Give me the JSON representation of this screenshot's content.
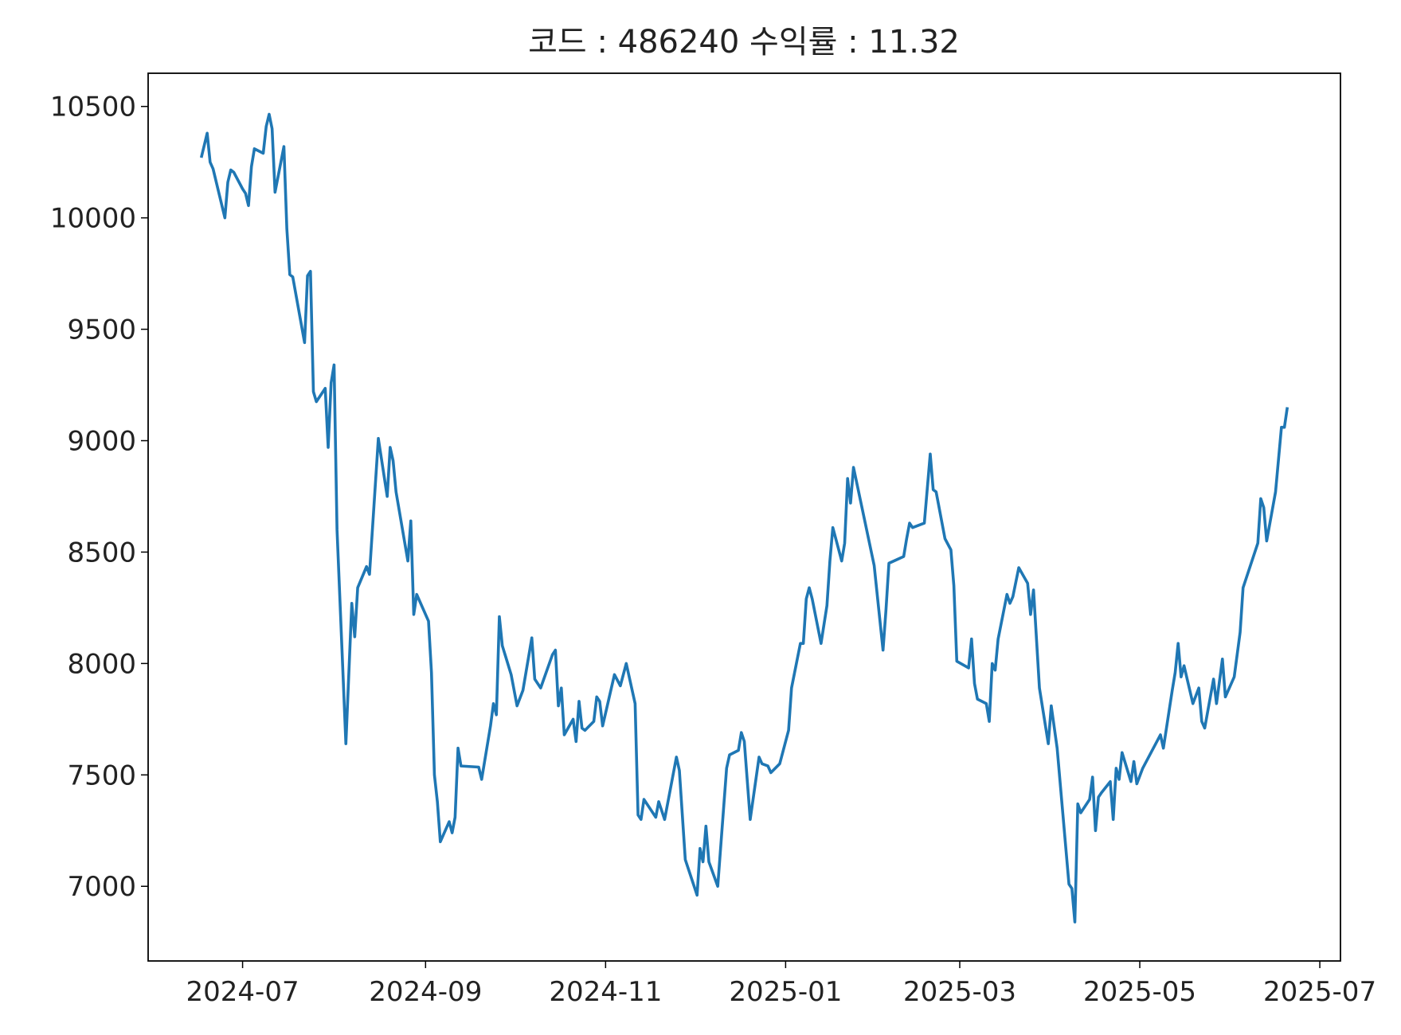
{
  "chart_data": {
    "type": "line",
    "title": "코드 : 486240 수익률 : 11.32",
    "color": "#1f77b4",
    "x": [
      "2024-06-17",
      "2024-06-19",
      "2024-06-20",
      "2024-06-21",
      "2024-06-25",
      "2024-06-26",
      "2024-06-27",
      "2024-06-28",
      "2024-07-01",
      "2024-07-02",
      "2024-07-03",
      "2024-07-04",
      "2024-07-05",
      "2024-07-08",
      "2024-07-09",
      "2024-07-10",
      "2024-07-11",
      "2024-07-12",
      "2024-07-15",
      "2024-07-16",
      "2024-07-17",
      "2024-07-18",
      "2024-07-22",
      "2024-07-23",
      "2024-07-24",
      "2024-07-25",
      "2024-07-26",
      "2024-07-29",
      "2024-07-30",
      "2024-07-31",
      "2024-08-01",
      "2024-08-02",
      "2024-08-05",
      "2024-08-07",
      "2024-08-08",
      "2024-08-09",
      "2024-08-12",
      "2024-08-13",
      "2024-08-16",
      "2024-08-19",
      "2024-08-20",
      "2024-08-21",
      "2024-08-22",
      "2024-08-26",
      "2024-08-27",
      "2024-08-28",
      "2024-08-29",
      "2024-09-02",
      "2024-09-03",
      "2024-09-04",
      "2024-09-05",
      "2024-09-06",
      "2024-09-09",
      "2024-09-10",
      "2024-09-11",
      "2024-09-12",
      "2024-09-13",
      "2024-09-19",
      "2024-09-20",
      "2024-09-23",
      "2024-09-24",
      "2024-09-25",
      "2024-09-26",
      "2024-09-27",
      "2024-09-30",
      "2024-10-02",
      "2024-10-04",
      "2024-10-07",
      "2024-10-08",
      "2024-10-10",
      "2024-10-14",
      "2024-10-15",
      "2024-10-16",
      "2024-10-17",
      "2024-10-18",
      "2024-10-21",
      "2024-10-22",
      "2024-10-23",
      "2024-10-24",
      "2024-10-25",
      "2024-10-28",
      "2024-10-29",
      "2024-10-30",
      "2024-10-31",
      "2024-11-04",
      "2024-11-06",
      "2024-11-08",
      "2024-11-11",
      "2024-11-12",
      "2024-11-13",
      "2024-11-14",
      "2024-11-18",
      "2024-11-19",
      "2024-11-21",
      "2024-11-25",
      "2024-11-26",
      "2024-11-28",
      "2024-12-02",
      "2024-12-03",
      "2024-12-04",
      "2024-12-05",
      "2024-12-06",
      "2024-12-09",
      "2024-12-12",
      "2024-12-13",
      "2024-12-16",
      "2024-12-17",
      "2024-12-18",
      "2024-12-20",
      "2024-12-23",
      "2024-12-24",
      "2024-12-26",
      "2024-12-27",
      "2024-12-30",
      "2025-01-02",
      "2025-01-03",
      "2025-01-06",
      "2025-01-07",
      "2025-01-08",
      "2025-01-09",
      "2025-01-10",
      "2025-01-13",
      "2025-01-15",
      "2025-01-16",
      "2025-01-17",
      "2025-01-20",
      "2025-01-21",
      "2025-01-22",
      "2025-01-23",
      "2025-01-24",
      "2025-01-31",
      "2025-02-03",
      "2025-02-04",
      "2025-02-05",
      "2025-02-10",
      "2025-02-11",
      "2025-02-12",
      "2025-02-13",
      "2025-02-17",
      "2025-02-19",
      "2025-02-20",
      "2025-02-21",
      "2025-02-24",
      "2025-02-26",
      "2025-02-27",
      "2025-02-28",
      "2025-03-04",
      "2025-03-05",
      "2025-03-06",
      "2025-03-07",
      "2025-03-10",
      "2025-03-11",
      "2025-03-12",
      "2025-03-13",
      "2025-03-14",
      "2025-03-17",
      "2025-03-18",
      "2025-03-19",
      "2025-03-21",
      "2025-03-24",
      "2025-03-25",
      "2025-03-26",
      "2025-03-28",
      "2025-03-31",
      "2025-04-01",
      "2025-04-03",
      "2025-04-07",
      "2025-04-08",
      "2025-04-09",
      "2025-04-10",
      "2025-04-11",
      "2025-04-14",
      "2025-04-15",
      "2025-04-16",
      "2025-04-17",
      "2025-04-18",
      "2025-04-21",
      "2025-04-22",
      "2025-04-23",
      "2025-04-24",
      "2025-04-25",
      "2025-04-28",
      "2025-04-29",
      "2025-04-30",
      "2025-05-02",
      "2025-05-08",
      "2025-05-09",
      "2025-05-12",
      "2025-05-13",
      "2025-05-14",
      "2025-05-15",
      "2025-05-16",
      "2025-05-19",
      "2025-05-21",
      "2025-05-22",
      "2025-05-23",
      "2025-05-26",
      "2025-05-27",
      "2025-05-29",
      "2025-05-30",
      "2025-06-02",
      "2025-06-04",
      "2025-06-05",
      "2025-06-10",
      "2025-06-11",
      "2025-06-12",
      "2025-06-13",
      "2025-06-16",
      "2025-06-18",
      "2025-06-19",
      "2025-06-20"
    ],
    "values": [
      10270,
      10380,
      10250,
      10220,
      10000,
      10160,
      10215,
      10205,
      10130,
      10110,
      10055,
      10230,
      10310,
      10290,
      10410,
      10465,
      10400,
      10115,
      10320,
      9950,
      9745,
      9735,
      9440,
      9740,
      9760,
      9220,
      9175,
      9235,
      8970,
      9260,
      9340,
      8600,
      7640,
      8270,
      8120,
      8340,
      8435,
      8400,
      9010,
      8750,
      8970,
      8910,
      8770,
      8460,
      8640,
      8220,
      8310,
      8190,
      7960,
      7500,
      7380,
      7200,
      7290,
      7240,
      7310,
      7620,
      7540,
      7535,
      7480,
      7720,
      7820,
      7770,
      8210,
      8080,
      7950,
      7810,
      7880,
      8115,
      7930,
      7890,
      8040,
      8060,
      7810,
      7890,
      7680,
      7750,
      7650,
      7830,
      7710,
      7700,
      7740,
      7850,
      7830,
      7720,
      7950,
      7900,
      8000,
      7820,
      7320,
      7300,
      7390,
      7310,
      7380,
      7300,
      7580,
      7520,
      7120,
      6960,
      7170,
      7110,
      7270,
      7110,
      7000,
      7530,
      7590,
      7610,
      7690,
      7650,
      7300,
      7580,
      7550,
      7540,
      7510,
      7550,
      7700,
      7890,
      8090,
      8090,
      8290,
      8340,
      8290,
      8090,
      8260,
      8460,
      8610,
      8460,
      8540,
      8830,
      8720,
      8880,
      8440,
      8060,
      8240,
      8450,
      8480,
      8560,
      8630,
      8610,
      8630,
      8940,
      8780,
      8770,
      8560,
      8510,
      8350,
      8010,
      7980,
      8110,
      7910,
      7840,
      7820,
      7740,
      8000,
      7970,
      8110,
      8310,
      8270,
      8300,
      8430,
      8360,
      8220,
      8330,
      7890,
      7640,
      7810,
      7620,
      7010,
      6990,
      6840,
      7370,
      7330,
      7390,
      7490,
      7250,
      7400,
      7420,
      7470,
      7300,
      7530,
      7480,
      7600,
      7470,
      7560,
      7460,
      7530,
      7680,
      7620,
      7880,
      7960,
      8090,
      7940,
      7990,
      7820,
      7890,
      7740,
      7710,
      7930,
      7820,
      8020,
      7850,
      7940,
      8140,
      8340,
      8540,
      8740,
      8700,
      8550,
      8770,
      9060,
      9060,
      9150
    ],
    "xlim": [
      "2024-05-30",
      "2025-07-08"
    ],
    "xticks": [
      {
        "value": "2024-07-01",
        "label": "2024-07"
      },
      {
        "value": "2024-09-01",
        "label": "2024-09"
      },
      {
        "value": "2024-11-01",
        "label": "2024-11"
      },
      {
        "value": "2025-01-01",
        "label": "2025-01"
      },
      {
        "value": "2025-03-01",
        "label": "2025-03"
      },
      {
        "value": "2025-05-01",
        "label": "2025-05"
      },
      {
        "value": "2025-07-01",
        "label": "2025-07"
      }
    ],
    "ylim": [
      6665,
      10649
    ],
    "yticks": [
      7000,
      7500,
      8000,
      8500,
      9000,
      9500,
      10000,
      10500
    ],
    "grid": false
  }
}
